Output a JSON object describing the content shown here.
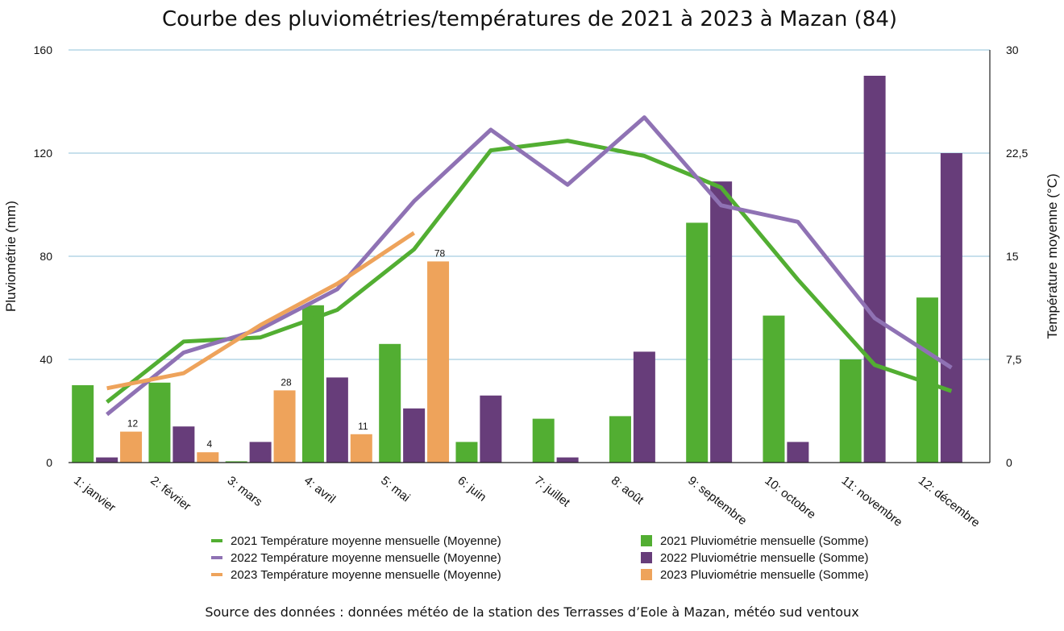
{
  "chart_data": {
    "type": "bar",
    "title": "Courbe des pluviométries/températures de 2021 à 2023 à Mazan (84)",
    "source": "Source des données : données météo de la station des Terrasses d’Eole à Mazan, météo sud ventoux",
    "ylabel": "Pluviométrie (mm)",
    "y2label": "Température moyenne (°C)",
    "ylim": [
      0,
      160
    ],
    "y2lim": [
      0,
      30
    ],
    "yticks": [
      "0",
      "40",
      "80",
      "120",
      "160"
    ],
    "y2ticks": [
      "0",
      "7,5",
      "15",
      "22,5",
      "30"
    ],
    "grid": true,
    "legend_position": "bottom",
    "categories": [
      "1: janvier",
      "2: février",
      "3: mars",
      "4: avril",
      "5: mai",
      "6: juin",
      "7: juillet",
      "8: août",
      "9: septembre",
      "10: octobre",
      "11: novembre",
      "12: décembre"
    ],
    "bar_series": [
      {
        "name": "2021 Pluviométrie mensuelle (Somme)",
        "color": "#52ae32",
        "values": [
          30,
          31,
          0.5,
          61,
          46,
          8,
          17,
          18,
          93,
          57,
          40,
          64
        ]
      },
      {
        "name": "2022 Pluviométrie mensuelle (Somme)",
        "color": "#673d7a",
        "values": [
          2,
          14,
          8,
          33,
          21,
          26,
          2,
          43,
          109,
          8,
          150,
          120
        ]
      },
      {
        "name": "2023 Pluviométrie mensuelle (Somme)",
        "color": "#eea35b",
        "values": [
          12,
          4,
          null,
          null,
          null,
          null,
          null,
          null,
          null,
          null,
          null,
          null
        ],
        "values_c": [
          null,
          null,
          28,
          11,
          78,
          null,
          null,
          null,
          null,
          null,
          null,
          null
        ],
        "labels": [
          "12",
          "4",
          "28",
          "11",
          "78",
          "",
          "",
          "",
          "",
          "",
          "",
          ""
        ]
      }
    ],
    "line_series": [
      {
        "name": "2021 Température moyenne mensuelle (Moyenne)",
        "color": "#52ae32",
        "values": [
          4.4,
          8.8,
          9.1,
          11.1,
          15.5,
          22.7,
          23.4,
          22.3,
          20.0,
          13.3,
          7.1,
          5.2
        ]
      },
      {
        "name": "2022 Température moyenne mensuelle (Moyenne)",
        "color": "#8f72b4",
        "values": [
          3.5,
          8.0,
          9.7,
          12.6,
          19.0,
          24.2,
          20.2,
          25.1,
          18.7,
          17.5,
          10.5,
          6.9
        ]
      },
      {
        "name": "2023 Température moyenne mensuelle (Moyenne)",
        "color": "#eea35b",
        "values": [
          5.4,
          6.5,
          10.0,
          13.0,
          16.7,
          null,
          null,
          null,
          null,
          null,
          null,
          null
        ]
      }
    ]
  }
}
